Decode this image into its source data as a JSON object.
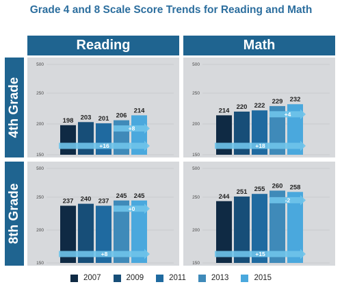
{
  "title": "Grade 4 and 8 Scale Score Trends for Reading and Math",
  "colors": {
    "header": "#1f6490",
    "years": [
      "#0f2a44",
      "#174e78",
      "#1f6aa0",
      "#3f8ab9",
      "#4aa8dd"
    ],
    "arrow": "#6fc3ea"
  },
  "chart_data": {
    "type": "bar",
    "subjects": [
      "Reading",
      "Math"
    ],
    "grades": [
      "4th Grade",
      "8th Grade"
    ],
    "legend": [
      "2007",
      "2009",
      "2011",
      "2013",
      "2015"
    ],
    "panels": [
      {
        "subject": "Reading",
        "grade": "4th Grade",
        "categories": [
          "2007",
          "2009",
          "2011",
          "2013",
          "2015"
        ],
        "values": [
          198,
          203,
          201,
          206,
          214
        ],
        "yticks": [
          "500",
          "250",
          "200",
          "150"
        ],
        "changes": [
          {
            "label": "+8",
            "from": "2013",
            "to": "2015"
          },
          {
            "label": "+16",
            "from": "2007",
            "to": "2015"
          }
        ]
      },
      {
        "subject": "Math",
        "grade": "4th Grade",
        "categories": [
          "2007",
          "2009",
          "2011",
          "2013",
          "2015"
        ],
        "values": [
          214,
          220,
          222,
          229,
          232
        ],
        "yticks": [
          "500",
          "250",
          "200",
          "150"
        ],
        "changes": [
          {
            "label": "+4",
            "from": "2013",
            "to": "2015"
          },
          {
            "label": "+18",
            "from": "2007",
            "to": "2015"
          }
        ]
      },
      {
        "subject": "Reading",
        "grade": "8th Grade",
        "categories": [
          "2007",
          "2009",
          "2011",
          "2013",
          "2015"
        ],
        "values": [
          237,
          240,
          237,
          245,
          245
        ],
        "yticks": [
          "500",
          "250",
          "200",
          "150"
        ],
        "changes": [
          {
            "label": "+0",
            "from": "2013",
            "to": "2015"
          },
          {
            "label": "+8",
            "from": "2007",
            "to": "2015"
          }
        ]
      },
      {
        "subject": "Math",
        "grade": "8th Grade",
        "categories": [
          "2007",
          "2009",
          "2011",
          "2013",
          "2015"
        ],
        "values": [
          244,
          251,
          255,
          260,
          258
        ],
        "yticks": [
          "500",
          "250",
          "200",
          "150"
        ],
        "changes": [
          {
            "label": "-2",
            "from": "2013",
            "to": "2015"
          },
          {
            "label": "+15",
            "from": "2007",
            "to": "2015"
          }
        ]
      }
    ]
  }
}
